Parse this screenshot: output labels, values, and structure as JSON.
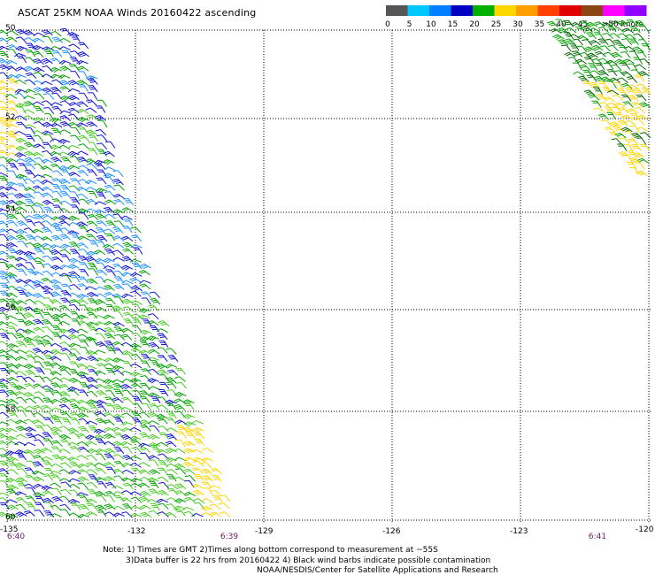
{
  "title": "ASCAT 25KM NOAA Winds 20160422 ascending",
  "legend": {
    "labels": [
      "0",
      "5",
      "10",
      "15",
      "20",
      "25",
      "30",
      "35",
      "40",
      "45",
      ">50 knots"
    ],
    "colors": [
      "#555555",
      "#00c8ff",
      "#0080ff",
      "#0000c0",
      "#00b000",
      "#ffd700",
      "#ffa000",
      "#ff4000",
      "#e00000",
      "#8b4513",
      "#ff00ff",
      "#9000ff"
    ]
  },
  "map": {
    "lat_labels": [
      "50",
      "52",
      "54",
      "56",
      "58",
      "60"
    ],
    "lon_labels": [
      "-135",
      "-132",
      "-129",
      "-126",
      "-123",
      "-120"
    ],
    "time_labels": [
      "6:40",
      "6:39",
      "6:41"
    ]
  },
  "notes": {
    "line1": "Note: 1) Times are GMT 2)Times along bottom correspond to measurement at ~55S",
    "line2": "3)Data buffer is 22 hrs from 20160422 4) Black wind barbs indicate possible contamination",
    "line3": "NOAA/NESDIS/Center for Satellite Applications and Research"
  },
  "barb_colors": {
    "green": "#00a000",
    "lightgreen": "#44cc22",
    "blue": "#1010d0",
    "cyan": "#1e90ff",
    "yellow": "#ffd400",
    "darkgreen": "#006600"
  }
}
